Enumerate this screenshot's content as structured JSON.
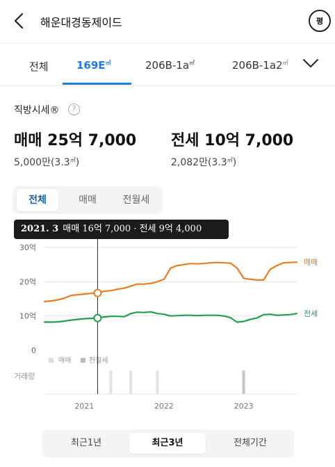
{
  "header": {
    "title": "해운대경동제이드",
    "pyeong_label": "평"
  },
  "tabs": [
    {
      "label": "전체",
      "unit": "",
      "active": false
    },
    {
      "label": "169E",
      "unit": "㎡",
      "active": true
    },
    {
      "label": "206B-1a",
      "unit": "㎡",
      "active": false
    },
    {
      "label": "206B-1a2",
      "unit": "㎡",
      "active": false
    }
  ],
  "sise": {
    "label": "직방시세®",
    "help_icon": "?",
    "sale": {
      "price": "매매 25억 7,000",
      "per_area": "5,000만(3.3",
      "unit": "㎡",
      "close": ")"
    },
    "jeonse": {
      "price": "전세 10억 7,000",
      "per_area": "2,082만(3.3",
      "unit": "㎡",
      "close": ")"
    }
  },
  "filter": [
    "전체",
    "매매",
    "전월세"
  ],
  "filter_active": 0,
  "tooltip": {
    "date": "2021. 3",
    "text": "매매 16억 7,000 · 전세 9억 4,000"
  },
  "range": [
    "최근1년",
    "최근3년",
    "전체기간"
  ],
  "range_active": 1,
  "colors": {
    "sale": "#f07a1e",
    "jeonse": "#1ea04e",
    "accent": "#1a7de6"
  },
  "chart_data": {
    "type": "line",
    "x_unit": "month",
    "x": [
      "2020-07",
      "2020-08",
      "2020-09",
      "2020-10",
      "2020-11",
      "2020-12",
      "2021-01",
      "2021-02",
      "2021-03",
      "2021-04",
      "2021-05",
      "2021-06",
      "2021-07",
      "2021-08",
      "2021-09",
      "2021-10",
      "2021-11",
      "2021-12",
      "2022-01",
      "2022-02",
      "2022-03",
      "2022-04",
      "2022-05",
      "2022-06",
      "2022-07",
      "2022-08",
      "2022-09",
      "2022-10",
      "2022-11",
      "2022-12",
      "2023-01",
      "2023-02",
      "2023-03",
      "2023-04",
      "2023-05",
      "2023-06",
      "2023-07",
      "2023-08",
      "2023-09"
    ],
    "series": [
      {
        "name": "매매",
        "values": [
          14.2,
          14.4,
          14.7,
          15.2,
          16.0,
          16.2,
          16.4,
          16.6,
          16.7,
          17.2,
          17.4,
          17.8,
          18.1,
          18.7,
          19.3,
          19.3,
          19.5,
          20.0,
          20.7,
          24.0,
          24.7,
          25.0,
          25.3,
          25.2,
          25.3,
          25.5,
          25.6,
          25.5,
          25.4,
          24.0,
          21.0,
          20.7,
          20.5,
          20.5,
          23.6,
          24.7,
          25.5,
          25.6,
          25.7
        ]
      },
      {
        "name": "전세",
        "values": [
          8.2,
          8.2,
          8.3,
          8.5,
          8.8,
          9.0,
          9.2,
          9.3,
          9.4,
          9.7,
          9.9,
          9.9,
          9.8,
          10.7,
          11.1,
          11.0,
          11.2,
          10.7,
          10.5,
          10.0,
          10.1,
          10.2,
          10.2,
          10.1,
          10.2,
          10.2,
          10.2,
          10.0,
          9.5,
          8.2,
          8.4,
          9.0,
          9.4,
          10.4,
          10.5,
          10.2,
          10.3,
          10.4,
          10.7
        ]
      }
    ],
    "y_ticks": [
      0,
      10,
      20,
      30
    ],
    "y_tick_labels": [
      "0",
      "10억",
      "20억",
      "30억"
    ],
    "ylim": [
      0,
      30
    ],
    "x_tick_labels": [
      {
        "label": "2021",
        "x": "2021-01"
      },
      {
        "label": "2022",
        "x": "2022-01"
      },
      {
        "label": "2023",
        "x": "2023-01"
      }
    ],
    "volume_label": "거래량",
    "volume_legend": [
      "매매",
      "전월세"
    ],
    "volume_bars": [
      {
        "x": "2021-05",
        "type": "매매"
      },
      {
        "x": "2021-08",
        "type": "매매"
      },
      {
        "x": "2021-12",
        "type": "매매"
      },
      {
        "x": "2023-01",
        "type": "전월세"
      }
    ],
    "highlight": {
      "x": "2021-03",
      "sale": 16.7,
      "jeonse": 9.4
    },
    "grid": true
  }
}
